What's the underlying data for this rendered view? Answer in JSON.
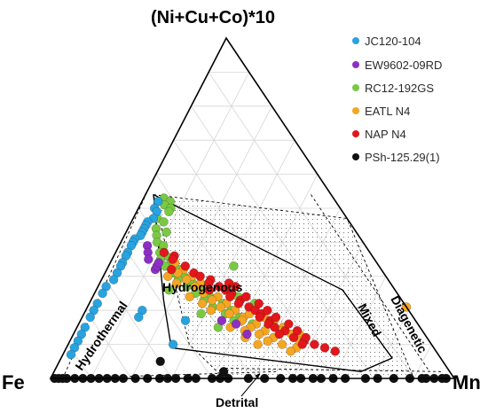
{
  "chart_data": {
    "type": "ternary-scatter",
    "title": "",
    "vertices": {
      "top": "(Ni+Cu+Co)*10",
      "left": "Fe",
      "right": "Mn"
    },
    "regions": [
      {
        "id": "hydrogenous",
        "label": "Hydrogenous"
      },
      {
        "id": "hydrothermal",
        "label": "Hydrothermal"
      },
      {
        "id": "diagenetic",
        "label": "Diagenetic"
      },
      {
        "id": "mixed",
        "label": "Mixed"
      },
      {
        "id": "detrital",
        "label": "Detrital"
      }
    ],
    "grid": true,
    "legend_position": "top-right",
    "series": [
      {
        "name": "JC120-104",
        "color": "#29a3df",
        "points": [
          [
            0.52,
            0.44,
            0.04
          ],
          [
            0.5,
            0.46,
            0.04
          ],
          [
            0.49,
            0.46,
            0.05
          ],
          [
            0.47,
            0.48,
            0.05
          ],
          [
            0.46,
            0.5,
            0.04
          ],
          [
            0.45,
            0.51,
            0.04
          ],
          [
            0.44,
            0.52,
            0.04
          ],
          [
            0.43,
            0.53,
            0.04
          ],
          [
            0.42,
            0.54,
            0.04
          ],
          [
            0.41,
            0.56,
            0.03
          ],
          [
            0.4,
            0.57,
            0.03
          ],
          [
            0.39,
            0.58,
            0.03
          ],
          [
            0.37,
            0.6,
            0.03
          ],
          [
            0.36,
            0.61,
            0.03
          ],
          [
            0.34,
            0.63,
            0.03
          ],
          [
            0.33,
            0.64,
            0.03
          ],
          [
            0.31,
            0.66,
            0.03
          ],
          [
            0.29,
            0.68,
            0.03
          ],
          [
            0.27,
            0.71,
            0.02
          ],
          [
            0.25,
            0.73,
            0.02
          ],
          [
            0.22,
            0.76,
            0.02
          ],
          [
            0.2,
            0.78,
            0.02
          ],
          [
            0.18,
            0.8,
            0.02
          ],
          [
            0.15,
            0.83,
            0.02
          ],
          [
            0.13,
            0.85,
            0.02
          ],
          [
            0.11,
            0.87,
            0.02
          ],
          [
            0.09,
            0.89,
            0.02
          ],
          [
            0.07,
            0.91,
            0.02
          ],
          [
            0.2,
            0.66,
            0.14
          ],
          [
            0.18,
            0.68,
            0.14
          ],
          [
            0.1,
            0.64,
            0.26
          ],
          [
            0.28,
            0.45,
            0.27
          ],
          [
            0.17,
            0.57,
            0.26
          ]
        ]
      },
      {
        "name": "EW9602-09RD",
        "color": "#8e2fc4",
        "points": [
          [
            0.39,
            0.54,
            0.07
          ],
          [
            0.37,
            0.55,
            0.08
          ],
          [
            0.35,
            0.56,
            0.09
          ],
          [
            0.32,
            0.56,
            0.12
          ],
          [
            0.16,
            0.45,
            0.39
          ],
          [
            0.33,
            0.55,
            0.12
          ],
          [
            0.34,
            0.54,
            0.12
          ],
          [
            0.13,
            0.44,
            0.43
          ],
          [
            0.17,
            0.48,
            0.35
          ]
        ]
      },
      {
        "name": "RC12-192GS",
        "color": "#7ac943",
        "points": [
          [
            0.53,
            0.42,
            0.05
          ],
          [
            0.52,
            0.41,
            0.07
          ],
          [
            0.51,
            0.43,
            0.06
          ],
          [
            0.5,
            0.42,
            0.08
          ],
          [
            0.49,
            0.43,
            0.08
          ],
          [
            0.47,
            0.47,
            0.06
          ],
          [
            0.46,
            0.46,
            0.08
          ],
          [
            0.44,
            0.49,
            0.07
          ],
          [
            0.43,
            0.47,
            0.1
          ],
          [
            0.42,
            0.5,
            0.08
          ],
          [
            0.4,
            0.51,
            0.09
          ],
          [
            0.39,
            0.5,
            0.11
          ],
          [
            0.37,
            0.52,
            0.11
          ],
          [
            0.36,
            0.51,
            0.13
          ],
          [
            0.35,
            0.53,
            0.12
          ],
          [
            0.34,
            0.51,
            0.15
          ],
          [
            0.33,
            0.53,
            0.14
          ],
          [
            0.32,
            0.5,
            0.18
          ],
          [
            0.31,
            0.52,
            0.17
          ],
          [
            0.3,
            0.5,
            0.2
          ],
          [
            0.29,
            0.52,
            0.19
          ],
          [
            0.28,
            0.49,
            0.23
          ],
          [
            0.27,
            0.51,
            0.22
          ],
          [
            0.26,
            0.47,
            0.27
          ],
          [
            0.25,
            0.5,
            0.25
          ],
          [
            0.24,
            0.47,
            0.29
          ],
          [
            0.23,
            0.49,
            0.28
          ],
          [
            0.22,
            0.45,
            0.33
          ],
          [
            0.21,
            0.48,
            0.31
          ],
          [
            0.2,
            0.44,
            0.36
          ],
          [
            0.19,
            0.46,
            0.35
          ],
          [
            0.18,
            0.43,
            0.39
          ],
          [
            0.17,
            0.45,
            0.38
          ],
          [
            0.16,
            0.41,
            0.43
          ],
          [
            0.22,
            0.37,
            0.41
          ],
          [
            0.24,
            0.4,
            0.36
          ],
          [
            0.33,
            0.36,
            0.31
          ],
          [
            0.19,
            0.52,
            0.29
          ],
          [
            0.15,
            0.5,
            0.35
          ],
          [
            0.26,
            0.56,
            0.18
          ]
        ]
      },
      {
        "name": "EATL N4",
        "color": "#f4a623",
        "points": [
          [
            0.21,
            0.0,
            0.79
          ],
          [
            0.34,
            0.5,
            0.16
          ],
          [
            0.32,
            0.49,
            0.19
          ],
          [
            0.31,
            0.51,
            0.18
          ],
          [
            0.3,
            0.48,
            0.22
          ],
          [
            0.29,
            0.5,
            0.21
          ],
          [
            0.28,
            0.47,
            0.25
          ],
          [
            0.27,
            0.49,
            0.24
          ],
          [
            0.26,
            0.46,
            0.28
          ],
          [
            0.25,
            0.48,
            0.27
          ],
          [
            0.24,
            0.45,
            0.31
          ],
          [
            0.23,
            0.47,
            0.3
          ],
          [
            0.22,
            0.44,
            0.34
          ],
          [
            0.21,
            0.46,
            0.33
          ],
          [
            0.2,
            0.43,
            0.37
          ],
          [
            0.19,
            0.45,
            0.36
          ],
          [
            0.18,
            0.42,
            0.4
          ],
          [
            0.17,
            0.43,
            0.4
          ],
          [
            0.16,
            0.4,
            0.44
          ],
          [
            0.15,
            0.42,
            0.43
          ],
          [
            0.14,
            0.39,
            0.47
          ],
          [
            0.13,
            0.41,
            0.46
          ],
          [
            0.12,
            0.38,
            0.5
          ],
          [
            0.11,
            0.4,
            0.49
          ],
          [
            0.1,
            0.37,
            0.53
          ],
          [
            0.09,
            0.34,
            0.57
          ],
          [
            0.19,
            0.4,
            0.41
          ],
          [
            0.18,
            0.37,
            0.45
          ],
          [
            0.17,
            0.35,
            0.48
          ],
          [
            0.16,
            0.36,
            0.48
          ],
          [
            0.15,
            0.34,
            0.51
          ],
          [
            0.14,
            0.35,
            0.51
          ],
          [
            0.13,
            0.33,
            0.54
          ],
          [
            0.24,
            0.52,
            0.24
          ],
          [
            0.28,
            0.53,
            0.19
          ],
          [
            0.3,
            0.54,
            0.16
          ],
          [
            0.12,
            0.45,
            0.43
          ],
          [
            0.1,
            0.43,
            0.47
          ],
          [
            0.15,
            0.47,
            0.38
          ],
          [
            0.13,
            0.31,
            0.56
          ],
          [
            0.11,
            0.32,
            0.57
          ],
          [
            0.2,
            0.49,
            0.31
          ],
          [
            0.22,
            0.5,
            0.28
          ],
          [
            0.08,
            0.36,
            0.56
          ],
          [
            0.14,
            0.44,
            0.42
          ]
        ]
      },
      {
        "name": "NAP N4",
        "color": "#e3171b",
        "points": [
          [
            0.37,
            0.51,
            0.12
          ],
          [
            0.36,
            0.49,
            0.15
          ],
          [
            0.35,
            0.5,
            0.15
          ],
          [
            0.33,
            0.48,
            0.19
          ],
          [
            0.31,
            0.47,
            0.22
          ],
          [
            0.3,
            0.46,
            0.24
          ],
          [
            0.29,
            0.44,
            0.27
          ],
          [
            0.28,
            0.45,
            0.27
          ],
          [
            0.27,
            0.43,
            0.3
          ],
          [
            0.26,
            0.42,
            0.32
          ],
          [
            0.25,
            0.41,
            0.34
          ],
          [
            0.24,
            0.42,
            0.34
          ],
          [
            0.23,
            0.4,
            0.37
          ],
          [
            0.22,
            0.41,
            0.37
          ],
          [
            0.21,
            0.39,
            0.4
          ],
          [
            0.2,
            0.38,
            0.42
          ],
          [
            0.19,
            0.37,
            0.44
          ],
          [
            0.18,
            0.38,
            0.44
          ],
          [
            0.17,
            0.36,
            0.47
          ],
          [
            0.16,
            0.37,
            0.47
          ],
          [
            0.15,
            0.36,
            0.49
          ],
          [
            0.14,
            0.34,
            0.52
          ],
          [
            0.13,
            0.36,
            0.51
          ],
          [
            0.12,
            0.33,
            0.55
          ],
          [
            0.11,
            0.31,
            0.58
          ],
          [
            0.1,
            0.29,
            0.61
          ],
          [
            0.09,
            0.27,
            0.64
          ],
          [
            0.08,
            0.25,
            0.67
          ],
          [
            0.24,
            0.38,
            0.38
          ],
          [
            0.22,
            0.36,
            0.42
          ],
          [
            0.2,
            0.35,
            0.45
          ],
          [
            0.26,
            0.46,
            0.28
          ],
          [
            0.32,
            0.52,
            0.16
          ],
          [
            0.28,
            0.4,
            0.32
          ],
          [
            0.18,
            0.34,
            0.48
          ],
          [
            0.16,
            0.32,
            0.52
          ],
          [
            0.14,
            0.31,
            0.55
          ],
          [
            0.12,
            0.3,
            0.58
          ],
          [
            0.1,
            0.32,
            0.58
          ],
          [
            0.27,
            0.39,
            0.34
          ]
        ]
      },
      {
        "name": "PSh-125.29(1)",
        "color": "#111111",
        "points": [
          [
            0.0,
            0.02,
            0.98
          ],
          [
            0.0,
            0.03,
            0.97
          ],
          [
            0.0,
            0.05,
            0.95
          ],
          [
            0.0,
            0.07,
            0.93
          ],
          [
            0.0,
            0.08,
            0.92
          ],
          [
            0.0,
            0.11,
            0.89
          ],
          [
            0.0,
            0.15,
            0.85
          ],
          [
            0.0,
            0.19,
            0.81
          ],
          [
            0.0,
            0.22,
            0.78
          ],
          [
            0.0,
            0.27,
            0.73
          ],
          [
            0.0,
            0.3,
            0.7
          ],
          [
            0.0,
            0.33,
            0.67
          ],
          [
            0.0,
            0.35,
            0.65
          ],
          [
            0.0,
            0.38,
            0.62
          ],
          [
            0.0,
            0.4,
            0.6
          ],
          [
            0.0,
            0.43,
            0.57
          ],
          [
            0.0,
            0.47,
            0.53
          ],
          [
            0.0,
            0.51,
            0.49
          ],
          [
            0.0,
            0.56,
            0.44
          ],
          [
            0.0,
            0.58,
            0.42
          ],
          [
            0.0,
            0.6,
            0.4
          ],
          [
            0.0,
            0.64,
            0.36
          ],
          [
            0.0,
            0.66,
            0.34
          ],
          [
            0.0,
            0.69,
            0.31
          ],
          [
            0.0,
            0.71,
            0.29
          ],
          [
            0.0,
            0.73,
            0.27
          ],
          [
            0.0,
            0.76,
            0.24
          ],
          [
            0.0,
            0.79,
            0.21
          ],
          [
            0.0,
            0.82,
            0.18
          ],
          [
            0.0,
            0.84,
            0.16
          ],
          [
            0.0,
            0.86,
            0.14
          ],
          [
            0.0,
            0.88,
            0.12
          ],
          [
            0.0,
            0.9,
            0.1
          ],
          [
            0.0,
            0.92,
            0.08
          ],
          [
            0.0,
            0.94,
            0.06
          ],
          [
            0.0,
            0.96,
            0.04
          ],
          [
            0.0,
            0.97,
            0.03
          ],
          [
            0.0,
            0.98,
            0.02
          ],
          [
            0.0,
            0.99,
            0.01
          ],
          [
            0.02,
            0.56,
            0.42
          ],
          [
            0.05,
            0.7,
            0.25
          ]
        ]
      }
    ]
  }
}
